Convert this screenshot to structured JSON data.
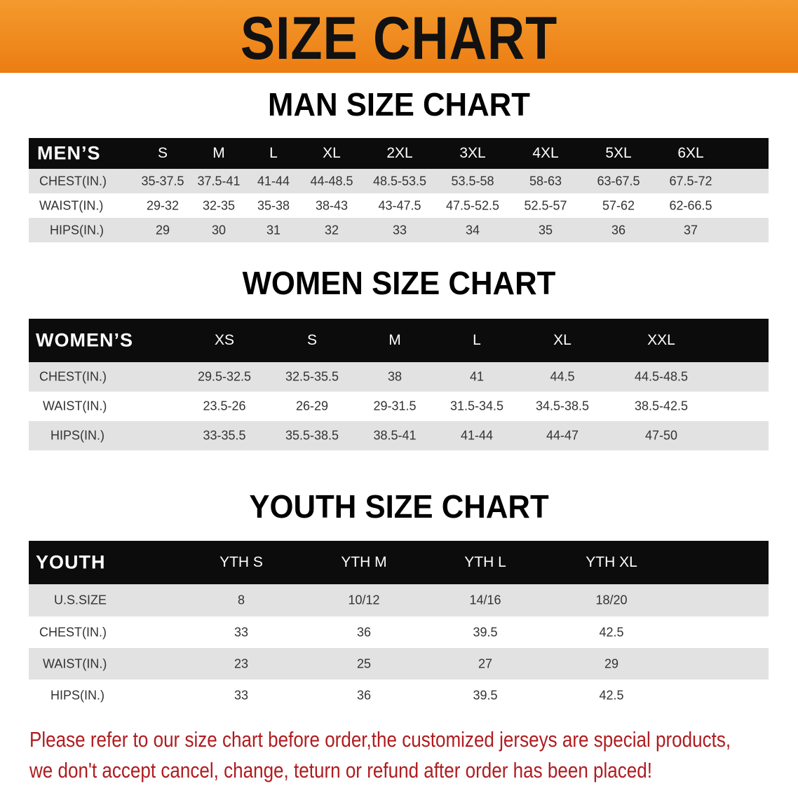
{
  "banner": {
    "title": "SIZE CHART",
    "color": "#ee8416"
  },
  "men": {
    "title": "MAN SIZE CHART",
    "header": "MEN’S",
    "sizes": [
      "S",
      "M",
      "L",
      "XL",
      "2XL",
      "3XL",
      "4XL",
      "5XL",
      "6XL"
    ],
    "rows": [
      {
        "label": "CHEST(IN.)",
        "values": [
          "35-37.5",
          "37.5-41",
          "41-44",
          "44-48.5",
          "48.5-53.5",
          "53.5-58",
          "58-63",
          "63-67.5",
          "67.5-72"
        ]
      },
      {
        "label": "WAIST(IN.)",
        "values": [
          "29-32",
          "32-35",
          "35-38",
          "38-43",
          "43-47.5",
          "47.5-52.5",
          "52.5-57",
          "57-62",
          "62-66.5"
        ]
      },
      {
        "label": "HIPS(IN.)",
        "values": [
          "29",
          "30",
          "31",
          "32",
          "33",
          "34",
          "35",
          "36",
          "37"
        ]
      }
    ]
  },
  "women": {
    "title": "WOMEN SIZE CHART",
    "header": "WOMEN’S",
    "sizes": [
      "XS",
      "S",
      "M",
      "L",
      "XL",
      "XXL"
    ],
    "rows": [
      {
        "label": "CHEST(IN.)",
        "values": [
          "29.5-32.5",
          "32.5-35.5",
          "38",
          "41",
          "44.5",
          "44.5-48.5"
        ]
      },
      {
        "label": "WAIST(IN.)",
        "values": [
          "23.5-26",
          "26-29",
          "29-31.5",
          "31.5-34.5",
          "34.5-38.5",
          "38.5-42.5"
        ]
      },
      {
        "label": "HIPS(IN.)",
        "values": [
          "33-35.5",
          "35.5-38.5",
          "38.5-41",
          "41-44",
          "44-47",
          "47-50"
        ]
      }
    ]
  },
  "youth": {
    "title": "YOUTH SIZE CHART",
    "header": "YOUTH",
    "sizes": [
      "YTH S",
      "YTH M",
      "YTH L",
      "YTH XL"
    ],
    "rows": [
      {
        "label": "U.S.SIZE",
        "values": [
          "8",
          "10/12",
          "14/16",
          "18/20"
        ]
      },
      {
        "label": "CHEST(IN.)",
        "values": [
          "33",
          "36",
          "39.5",
          "42.5"
        ]
      },
      {
        "label": "WAIST(IN.)",
        "values": [
          "23",
          "25",
          "27",
          "29"
        ]
      },
      {
        "label": "HIPS(IN.)",
        "values": [
          "33",
          "36",
          "39.5",
          "42.5"
        ]
      }
    ]
  },
  "note": {
    "line1": "Please refer to our size chart before order,the customized jerseys are special products,",
    "line2": "we don't accept cancel, change, teturn or refund after order has been placed!",
    "color": "#b01c1f"
  }
}
